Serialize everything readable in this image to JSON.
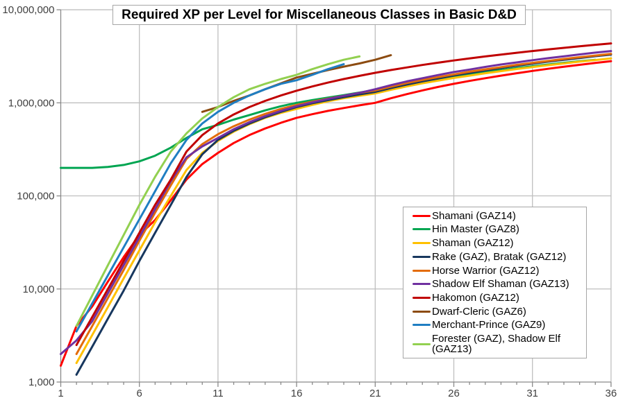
{
  "chart_data": {
    "type": "line",
    "title": "Required XP per Level for Miscellaneous Classes in Basic D&D",
    "x_axis": {
      "label": "",
      "min": 1,
      "max": 36,
      "tick_labels": [
        1,
        6,
        11,
        16,
        21,
        26,
        31,
        36
      ],
      "minor_tick_step": 1
    },
    "y_axis": {
      "label": "",
      "scale": "log",
      "ticks": [
        {
          "value": 1000,
          "label": "1,000"
        },
        {
          "value": 10000,
          "label": "10,000"
        },
        {
          "value": 100000,
          "label": "100,000"
        },
        {
          "value": 1000000,
          "label": "1,000,000"
        },
        {
          "value": 10000000,
          "label": "10,000,000"
        }
      ]
    },
    "grid": true,
    "legend_position": "middle-right",
    "series": [
      {
        "name": "Shamani (GAZ14)",
        "color": "#FF0000",
        "start_level": 1,
        "values": [
          1500,
          4000,
          6500,
          12000,
          22000,
          38000,
          55000,
          90000,
          150000,
          220000,
          290000,
          370000,
          450000,
          530000,
          610000,
          690000,
          755000,
          820000,
          880000,
          940000,
          1000000,
          1120000,
          1240000,
          1360000,
          1480000,
          1600000,
          1720000,
          1840000,
          1960000,
          2080000,
          2200000,
          2320000,
          2440000,
          2560000,
          2680000,
          2800000
        ]
      },
      {
        "name": "Hin Master (GAZ8)",
        "color": "#00A551",
        "start_level": 1,
        "values": [
          200000,
          200000,
          200000,
          205000,
          215000,
          235000,
          270000,
          330000,
          420000,
          520000,
          580000,
          660000,
          740000,
          830000,
          920000,
          1000000,
          1070000,
          1140000,
          1210000,
          1290000,
          1370000,
          1480000,
          1590000,
          1700000,
          1810000,
          1920000,
          2030000,
          2140000,
          2250000,
          2360000,
          2470000,
          2580000,
          2690000,
          2800000,
          2900000
        ]
      },
      {
        "name": "Shaman (GAZ12)",
        "color": "#FFC000",
        "start_level": 2,
        "values": [
          1600,
          3200,
          6400,
          13000,
          26000,
          52000,
          100000,
          190000,
          290000,
          390000,
          490000,
          590000,
          690000,
          780000,
          860000,
          950000,
          1040000,
          1120000,
          1190000,
          1260000,
          1380000,
          1500000,
          1620000,
          1730000,
          1850000,
          1960000,
          2080000,
          2190000,
          2310000,
          2420000,
          2540000,
          2650000,
          2770000,
          2880000,
          3000000
        ]
      },
      {
        "name": "Rake (GAZ), Bratak (GAZ12)",
        "color": "#17375E",
        "start_level": 2,
        "values": [
          1200,
          2400,
          4800,
          9600,
          20000,
          40000,
          80000,
          160000,
          280000,
          400000,
          500000,
          600000,
          700000,
          800000,
          900000,
          990000,
          1070000,
          1150000,
          1230000,
          1310000,
          1440000,
          1570000,
          1700000,
          1830000,
          1970000,
          2100000,
          2230000,
          2370000,
          2500000,
          2630000,
          2770000,
          2900000,
          3030000,
          3170000,
          3300000
        ]
      },
      {
        "name": "Horse Warrior (GAZ12)",
        "color": "#E36C09",
        "start_level": 2,
        "values": [
          2000,
          4000,
          8000,
          16000,
          33000,
          66000,
          130000,
          250000,
          360000,
          460000,
          560000,
          660000,
          760000,
          860000,
          950000,
          1030000,
          1110000,
          1190000,
          1280000,
          1360000,
          1490000,
          1630000,
          1760000,
          1890000,
          2020000,
          2160000,
          2290000,
          2420000,
          2560000,
          2690000,
          2820000,
          2960000,
          3090000,
          3220000,
          3360000
        ]
      },
      {
        "name": "Shadow Elf Shaman (GAZ13)",
        "color": "#7030A0",
        "start_level": 1,
        "values": [
          2000,
          2800,
          4500,
          9000,
          18000,
          36000,
          72000,
          144000,
          260000,
          340000,
          420000,
          520000,
          620000,
          720000,
          820000,
          920000,
          1010000,
          1100000,
          1190000,
          1280000,
          1400000,
          1550000,
          1700000,
          1840000,
          1990000,
          2140000,
          2280000,
          2430000,
          2580000,
          2720000,
          2870000,
          3020000,
          3160000,
          3310000,
          3460000,
          3600000
        ]
      },
      {
        "name": "Hakomon (GAZ12)",
        "color": "#C00000",
        "start_level": 2,
        "values": [
          2500,
          5000,
          10000,
          20000,
          40000,
          80000,
          150000,
          300000,
          450000,
          600000,
          750000,
          900000,
          1050000,
          1200000,
          1350000,
          1500000,
          1650000,
          1800000,
          1950000,
          2100000,
          2250000,
          2400000,
          2550000,
          2700000,
          2850000,
          3000000,
          3150000,
          3300000,
          3450000,
          3600000,
          3750000,
          3900000,
          4050000,
          4200000,
          4350000
        ]
      },
      {
        "name": "Dwarf-Cleric (GAZ6)",
        "color": "#8C4B10",
        "start_level": 10,
        "values": [
          800000,
          900000,
          1050000,
          1200000,
          1400000,
          1620000,
          1870000,
          2050000,
          2250000,
          2450000,
          2650000,
          2900000,
          3250000
        ]
      },
      {
        "name": "Merchant-Prince (GAZ9)",
        "color": "#1F7EC2",
        "start_level": 2,
        "values": [
          3500,
          7000,
          14000,
          28000,
          56000,
          112000,
          225000,
          400000,
          600000,
          800000,
          1000000,
          1200000,
          1400000,
          1600000,
          1750000,
          2000000,
          2300000,
          2600000
        ]
      },
      {
        "name": "Forester (GAZ), Shadow Elf (GAZ13)",
        "color": "#92D050",
        "start_level": 2,
        "values": [
          4000,
          8500,
          18000,
          38000,
          80000,
          160000,
          300000,
          470000,
          680000,
          900000,
          1150000,
          1400000,
          1600000,
          1800000,
          2000000,
          2300000,
          2600000,
          2900000,
          3150000
        ]
      }
    ]
  },
  "colors": {
    "background": "#FFFFFF",
    "gridline": "#BFBFBF",
    "axis": "#898989",
    "tick_text": "#3F3F3F",
    "title_text": "#000000"
  }
}
